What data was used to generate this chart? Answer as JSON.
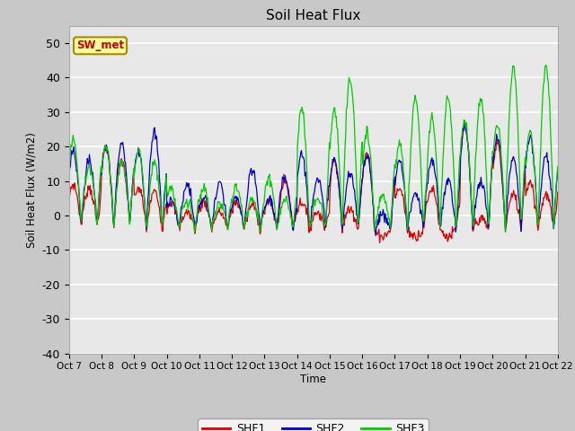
{
  "title": "Soil Heat Flux",
  "ylabel": "Soil Heat Flux (W/m2)",
  "xlabel": "Time",
  "ylim": [
    -40,
    55
  ],
  "background_color": "#e8e8e8",
  "plot_bg_color": "#e8e8e8",
  "grid_color": "#ffffff",
  "legend_label": "SW_met",
  "series_labels": [
    "SHF1",
    "SHF2",
    "SHF3"
  ],
  "series_colors": [
    "#dd0000",
    "#0000cc",
    "#00cc00"
  ],
  "xtick_labels": [
    "Oct 7",
    "Oct 8",
    "Oct 9",
    "Oct 10",
    "Oct 11",
    "Oct 12",
    "Oct 13",
    "Oct 14",
    "Oct 15",
    "Oct 16",
    "Oct 17",
    "Oct 18",
    "Oct 19",
    "Oct 20",
    "Oct 21",
    "Oct 22"
  ],
  "ytick_values": [
    -40,
    -30,
    -20,
    -10,
    0,
    10,
    20,
    30,
    40,
    50
  ],
  "num_days": 15,
  "pts_per_day": 48
}
